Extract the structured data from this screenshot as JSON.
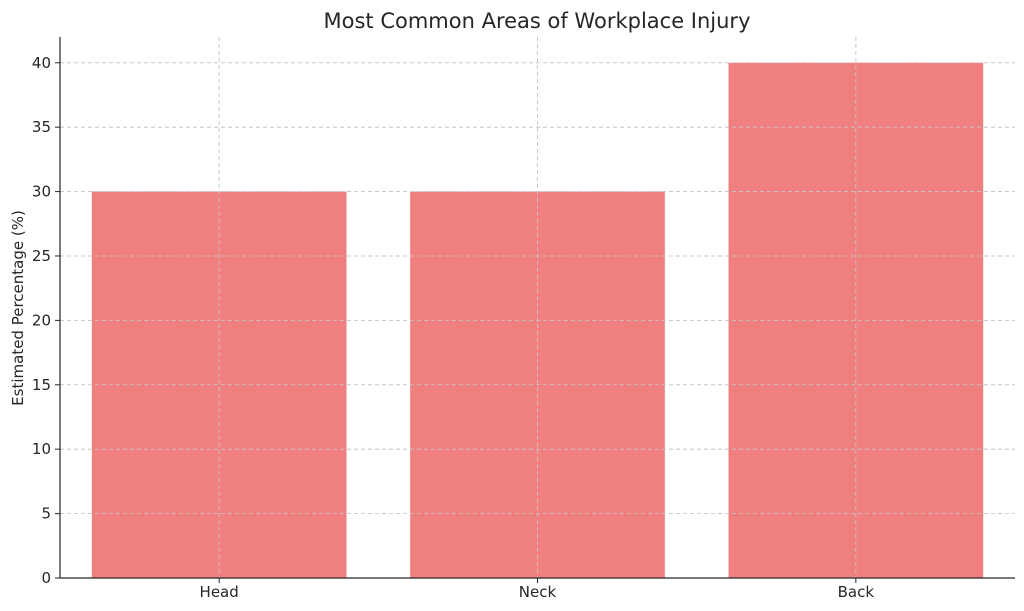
{
  "chart_data": {
    "type": "bar",
    "title": "Most Common Areas of Workplace Injury",
    "xlabel": "",
    "ylabel": "Estimated Percentage (%)",
    "categories": [
      "Head",
      "Neck",
      "Back"
    ],
    "values": [
      30,
      30,
      40
    ],
    "ylim": [
      0,
      42
    ],
    "yticks": [
      0,
      5,
      10,
      15,
      20,
      25,
      30,
      35,
      40
    ],
    "grid": true,
    "bar_color": "#f08080",
    "grid_color": "#c8c8c8"
  }
}
